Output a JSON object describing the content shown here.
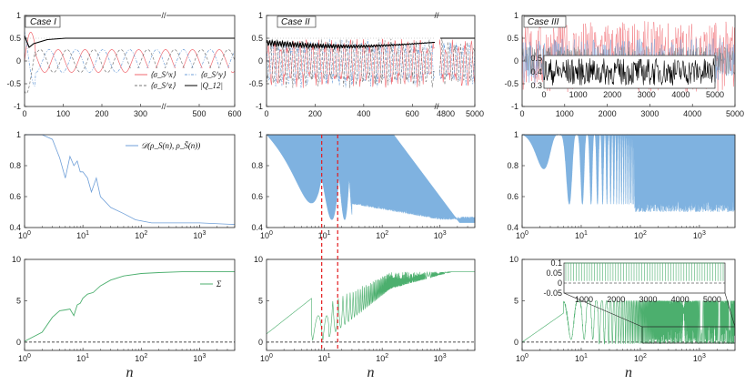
{
  "colors": {
    "red": "#f0686f",
    "blue": "#6f9fd8",
    "black": "#000000",
    "fillblue": "#7fb2e0",
    "green": "#4caf6e",
    "dashred": "#e41a1c"
  },
  "case_labels": [
    "Case I",
    "Case II",
    "Case III"
  ],
  "x_label": "n",
  "legend": {
    "sx": "⟨σ_S^x⟩",
    "sy": "⟨σ_S^y⟩",
    "sz": "⟨σ_S^z⟩",
    "q": "|Q_12|",
    "d": "𝒟(ρ_S(n), ρ_S̄(n))",
    "sigma": "Σ"
  },
  "chart_data": [
    {
      "id": "caseI_spin",
      "type": "line",
      "title": "Case I",
      "x_axis": "broken",
      "x_segments": [
        [
          0,
          360
        ],
        [
          400,
          600
        ]
      ],
      "xticks": [
        "0",
        "100",
        "200",
        "300",
        "500",
        "600"
      ],
      "ylim": [
        -1,
        1
      ],
      "yticks": [
        "-1",
        "-0.5",
        "0",
        "0.5",
        "1"
      ],
      "series": [
        {
          "name": "⟨σ_S^x⟩",
          "style": "solid-red",
          "kind": "oscillation",
          "amplitude": 0.25,
          "period": 30
        },
        {
          "name": "⟨σ_S^y⟩",
          "style": "dashdot-blue",
          "kind": "oscillation",
          "amplitude": 0.25,
          "period": 30
        },
        {
          "name": "⟨σ_S^z⟩",
          "style": "dashed-gray",
          "kind": "oscillation",
          "amplitude": 0.25,
          "period": 30
        },
        {
          "name": "|Q_12|",
          "style": "solid-black",
          "kind": "saturation",
          "x": [
            0,
            10,
            40,
            100,
            600
          ],
          "y": [
            0.5,
            0.3,
            0.45,
            0.5,
            0.5
          ]
        }
      ]
    },
    {
      "id": "caseII_spin",
      "type": "line",
      "title": "Case II",
      "x_axis": "broken",
      "x_segments": [
        [
          0,
          700
        ],
        [
          4800,
          5000
        ]
      ],
      "xticks": [
        "0",
        "200",
        "400",
        "600",
        "4800",
        "5000"
      ],
      "ylim": [
        -1,
        1
      ],
      "yticks": [
        "-1",
        "-0.5",
        "0",
        "0.5",
        "1"
      ],
      "series": [
        {
          "name": "|Q_12|",
          "style": "solid-black",
          "kind": "saturation",
          "x": [
            0,
            100,
            200,
            400,
            700,
            5000
          ],
          "y": [
            0.4,
            0.3,
            0.35,
            0.38,
            0.35,
            0.35
          ]
        }
      ]
    },
    {
      "id": "caseIII_spin",
      "type": "line",
      "title": "Case III",
      "xlim": [
        0,
        5000
      ],
      "xticks": [
        "0",
        "1000",
        "2000",
        "3000",
        "4000",
        "5000"
      ],
      "ylim": [
        -1,
        1
      ],
      "yticks": [
        "-1",
        "-0.5",
        "0",
        "0.5",
        "1"
      ],
      "inset": {
        "xlim": [
          0,
          5000
        ],
        "ylim": [
          0.28,
          0.52
        ],
        "xticks": [
          "0",
          "1000",
          "2000",
          "3000",
          "4000",
          "5000"
        ],
        "yticks": [
          "0.3",
          "0.4",
          "0.5"
        ]
      }
    },
    {
      "id": "caseI_D",
      "type": "line",
      "xscale": "log",
      "xlim": [
        1,
        4000
      ],
      "ylim": [
        0.4,
        1
      ],
      "yticks": [
        "0.4",
        "0.6",
        "0.8",
        "1"
      ],
      "xticks": [
        "10^0",
        "10^1",
        "10^2",
        "10^3"
      ],
      "series": [
        {
          "name": "𝒟(ρ_S(n), ρ_S̄(n))",
          "x": [
            1,
            2,
            3,
            4,
            5,
            6,
            7,
            8,
            9,
            10,
            12,
            14,
            17,
            20,
            30,
            50,
            80,
            150,
            300,
            1000,
            4000
          ],
          "y": [
            1,
            1,
            0.97,
            0.85,
            0.72,
            0.86,
            0.8,
            0.83,
            0.76,
            0.76,
            0.72,
            0.63,
            0.72,
            0.6,
            0.53,
            0.49,
            0.45,
            0.43,
            0.43,
            0.43,
            0.42
          ]
        }
      ]
    },
    {
      "id": "caseII_D",
      "type": "line",
      "xscale": "log",
      "xlim": [
        1,
        4000
      ],
      "ylim": [
        0.4,
        1
      ],
      "yticks": [
        "0.4",
        "0.6",
        "0.8",
        "1"
      ],
      "xticks": [
        "10^0",
        "10^1",
        "10^2",
        "10^3"
      ],
      "envelope_upper": {
        "x": [
          1,
          100,
          4000
        ],
        "y": [
          1,
          1,
          1
        ]
      },
      "envelope_lower": {
        "x": [
          1,
          3,
          10,
          20,
          50,
          100,
          300,
          1000,
          4000
        ],
        "y": [
          1,
          0.95,
          0.6,
          0.55,
          0.5,
          0.5,
          0.47,
          0.44,
          0.43
        ]
      }
    },
    {
      "id": "caseIII_D",
      "type": "line",
      "xscale": "log",
      "xlim": [
        1,
        4000
      ],
      "ylim": [
        0.4,
        1
      ],
      "yticks": [
        "0.4",
        "0.6",
        "0.8",
        "1"
      ],
      "xticks": [
        "10^0",
        "10^1",
        "10^2",
        "10^3"
      ]
    },
    {
      "id": "caseI_Sigma",
      "type": "line",
      "xscale": "log",
      "xlim": [
        1,
        4000
      ],
      "ylim": [
        -1,
        10
      ],
      "yticks": [
        "0",
        "5",
        "10"
      ],
      "xticks": [
        "10^0",
        "10^1",
        "10^2",
        "10^3"
      ],
      "series": [
        {
          "name": "Σ",
          "x": [
            1,
            2,
            3,
            4,
            5,
            6,
            7,
            8,
            9,
            10,
            12,
            15,
            20,
            30,
            50,
            100,
            200,
            500,
            4000
          ],
          "y": [
            0.1,
            1.2,
            3.0,
            3.8,
            3.9,
            4.0,
            3.2,
            4.5,
            4.7,
            5.3,
            5.8,
            6.0,
            6.8,
            7.5,
            8.0,
            8.3,
            8.4,
            8.5,
            8.5
          ]
        }
      ],
      "reference_line": 0
    },
    {
      "id": "caseII_Sigma",
      "type": "line",
      "xscale": "log",
      "xlim": [
        1,
        4000
      ],
      "ylim": [
        -1,
        10
      ],
      "yticks": [
        "0",
        "5",
        "10"
      ],
      "xticks": [
        "10^0",
        "10^1",
        "10^2",
        "10^3"
      ],
      "reference_line": 0,
      "vertical_markers": [
        9,
        17
      ]
    },
    {
      "id": "caseIII_Sigma",
      "type": "line",
      "xscale": "log",
      "xlim": [
        1,
        4000
      ],
      "ylim": [
        -1,
        10
      ],
      "yticks": [
        "0",
        "5",
        "10"
      ],
      "xticks": [
        "10^0",
        "10^1",
        "10^2",
        "10^3"
      ],
      "reference_line": 0,
      "inset": {
        "xlim": [
          0,
          5000
        ],
        "ylim": [
          -0.05,
          0.1
        ],
        "xticks": [
          "1000",
          "2000",
          "3000",
          "4000",
          "5000"
        ],
        "yticks": [
          "-0.05",
          "0",
          "0.05",
          "0.1"
        ]
      }
    }
  ]
}
